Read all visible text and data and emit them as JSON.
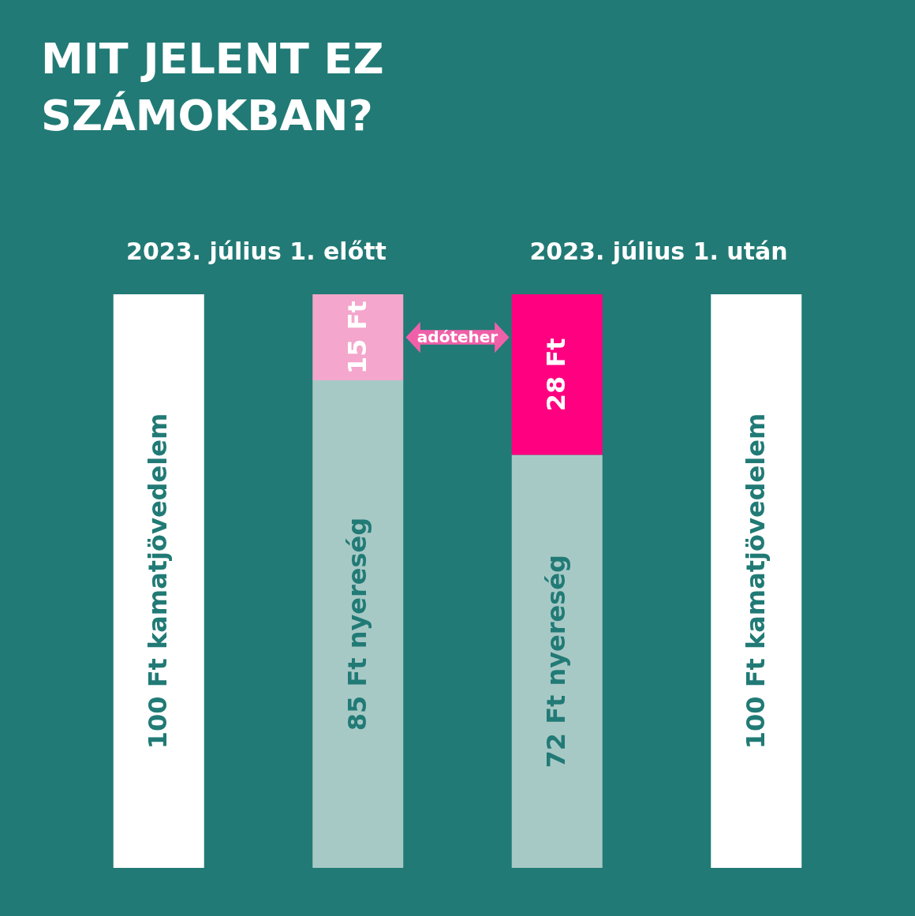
{
  "chart_data": {
    "type": "bar",
    "title": "MIT JELENT EZ SZÁMOKBAN?",
    "stacked": true,
    "categories": [
      null,
      null,
      null,
      null
    ],
    "series": [
      {
        "colors": [
          "#ffffff",
          "#a7c9c6",
          "#a7c9c6",
          "#ffffff"
        ],
        "values": [
          100,
          85,
          72,
          100
        ],
        "value_labels": [
          "100 Ft  kamatjövedelem",
          "85 Ft  nyereség",
          "72 Ft  nyereség",
          "100 Ft  kamatjövedelem"
        ]
      },
      {
        "colors": [
          null,
          "#f4a6cc",
          "#ff0080",
          null
        ],
        "values": [
          null,
          15,
          28,
          null
        ],
        "value_labels": [
          null,
          "15 Ft",
          "28 Ft",
          null
        ]
      }
    ],
    "annotations": [
      "2023. július 1. előtt",
      "2023. július 1. után",
      "adóteher"
    ]
  }
}
